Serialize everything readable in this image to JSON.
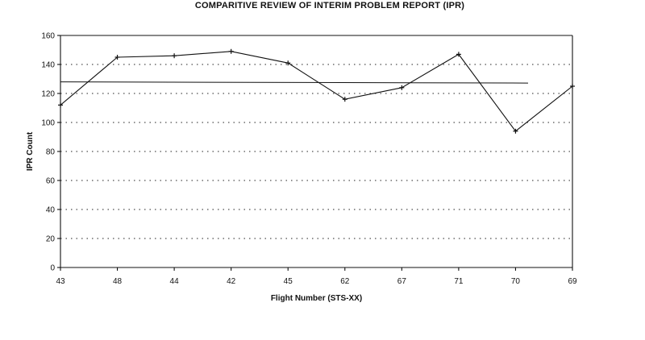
{
  "chart_data": {
    "type": "line",
    "title": "COMPARITIVE REVIEW OF INTERIM PROBLEM REPORT (IPR)",
    "xlabel": "Flight Number (STS-XX)",
    "ylabel": "IPR Count",
    "categories": [
      "43",
      "48",
      "44",
      "42",
      "45",
      "62",
      "67",
      "71",
      "70",
      "69"
    ],
    "series": [
      {
        "values": [
          112,
          145,
          146,
          149,
          141,
          116,
          124,
          147,
          94,
          125
        ]
      }
    ],
    "reference_line": 128,
    "ylim": [
      0,
      160
    ],
    "yticks": [
      0,
      20,
      40,
      60,
      80,
      100,
      120,
      140,
      160
    ],
    "grid": true,
    "line_color": "#111111"
  }
}
